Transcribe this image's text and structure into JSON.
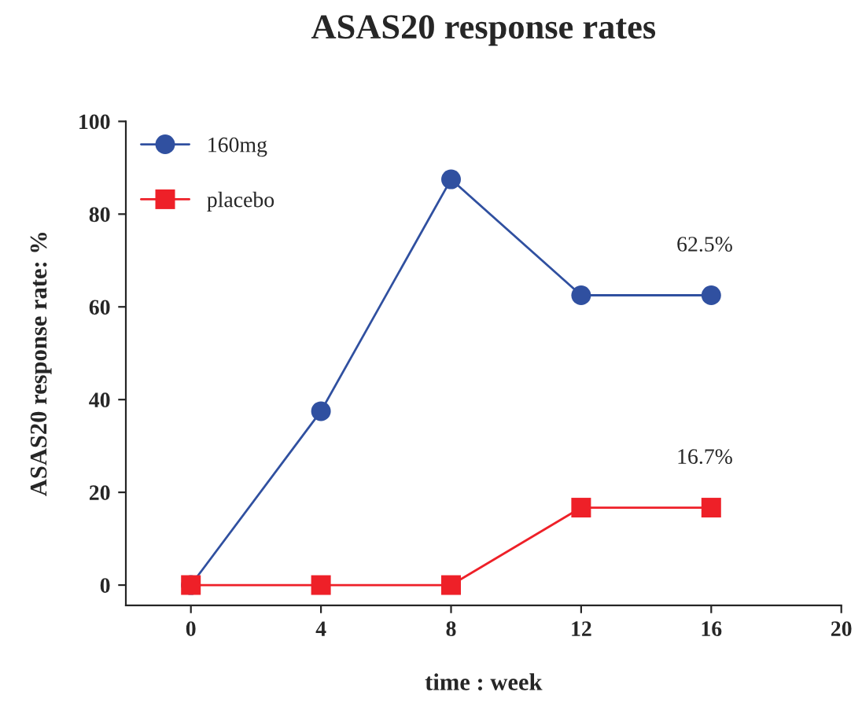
{
  "chart_data": {
    "type": "line",
    "title": "ASAS20 response rates",
    "xlabel": "time : week",
    "ylabel": "ASAS20 response rate: %",
    "x": [
      0,
      4,
      8,
      12,
      16
    ],
    "series": [
      {
        "name": "160mg",
        "color": "#3050a0",
        "values": [
          0,
          37.5,
          87.5,
          62.5,
          62.5
        ],
        "marker": "circle"
      },
      {
        "name": "placebo",
        "color": "#ee2028",
        "values": [
          0,
          0,
          0,
          16.7,
          16.7
        ],
        "marker": "square"
      }
    ],
    "annotations": [
      {
        "text": "62.5%",
        "x": 16,
        "y": 62.5
      },
      {
        "text": "16.7%",
        "x": 16,
        "y": 16.7
      }
    ],
    "xlim": [
      -2,
      20
    ],
    "xticks": [
      0,
      4,
      8,
      12,
      16,
      20
    ],
    "ylim": [
      -4.4,
      100
    ],
    "yticks": [
      0,
      20,
      40,
      60,
      80,
      100
    ],
    "grid": false,
    "legend": "top left",
    "line_style": "solid"
  }
}
